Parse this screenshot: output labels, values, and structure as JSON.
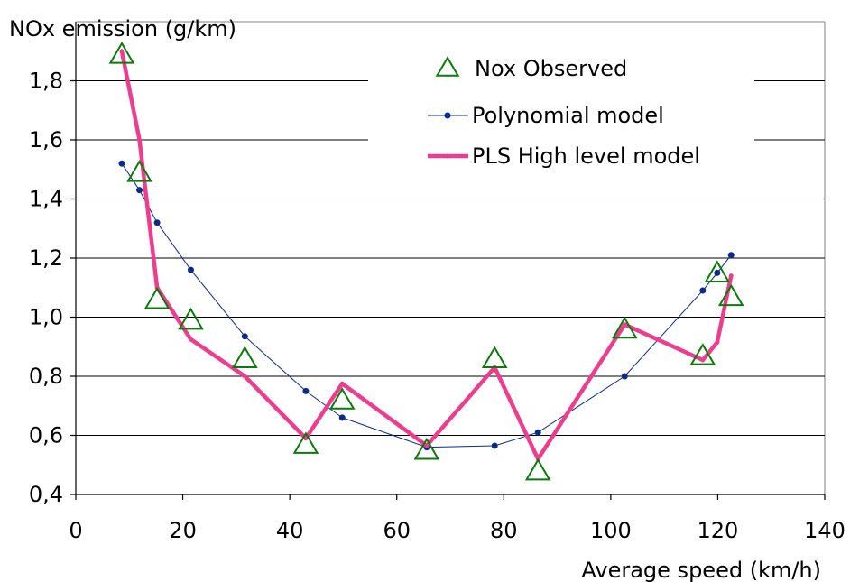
{
  "chart_data": {
    "type": "line",
    "ylabel": "NOx emission (g/km)",
    "xlabel": "Average speed (km/h)",
    "xlim": [
      0,
      140
    ],
    "ylim": [
      0.4,
      2.0
    ],
    "x_ticks": [
      0,
      20,
      40,
      60,
      80,
      100,
      120,
      140
    ],
    "x_tick_labels": [
      "0",
      "20",
      "40",
      "60",
      "80",
      "100",
      "120",
      "140"
    ],
    "y_ticks": [
      0.4,
      0.6,
      0.8,
      1.0,
      1.2,
      1.4,
      1.6,
      1.8
    ],
    "y_tick_labels": [
      "0,4",
      "0,6",
      "0,8",
      "1,0",
      "1,2",
      "1,4",
      "1,6",
      "1,8"
    ],
    "grid": "horizontal",
    "legend_position": "top-right",
    "colors": {
      "observed": "#0a7a0a",
      "polynomial": "#0b2a8c",
      "pls": "#ee3d8f",
      "grid": "#000000"
    },
    "series": [
      {
        "name": "Nox Observed",
        "marker": "triangle-open",
        "x": [
          8.6,
          11.9,
          15.2,
          21.5,
          31.6,
          43.0,
          49.8,
          65.6,
          78.3,
          86.4,
          102.6,
          117.2,
          119.9,
          122.5
        ],
        "y": [
          1.89,
          1.49,
          1.06,
          0.99,
          0.86,
          0.57,
          0.72,
          0.55,
          0.86,
          0.48,
          0.96,
          0.87,
          1.15,
          1.07
        ]
      },
      {
        "name": "Polynomial model",
        "marker": "dot",
        "x": [
          8.6,
          11.9,
          15.2,
          21.5,
          31.6,
          43.0,
          49.8,
          65.6,
          78.3,
          86.4,
          102.6,
          117.2,
          119.9,
          122.5
        ],
        "y": [
          1.52,
          1.43,
          1.32,
          1.16,
          0.935,
          0.75,
          0.66,
          0.56,
          0.565,
          0.61,
          0.8,
          1.09,
          1.15,
          1.21
        ]
      },
      {
        "name": "PLS High level model",
        "marker": "small-dot",
        "x": [
          8.6,
          11.9,
          15.2,
          21.5,
          31.6,
          43.0,
          49.8,
          65.6,
          78.3,
          86.4,
          102.6,
          117.2,
          119.9,
          122.5
        ],
        "y": [
          1.9,
          1.6,
          1.1,
          0.925,
          0.8,
          0.59,
          0.775,
          0.565,
          0.83,
          0.52,
          0.975,
          0.855,
          0.915,
          1.14
        ]
      }
    ]
  }
}
